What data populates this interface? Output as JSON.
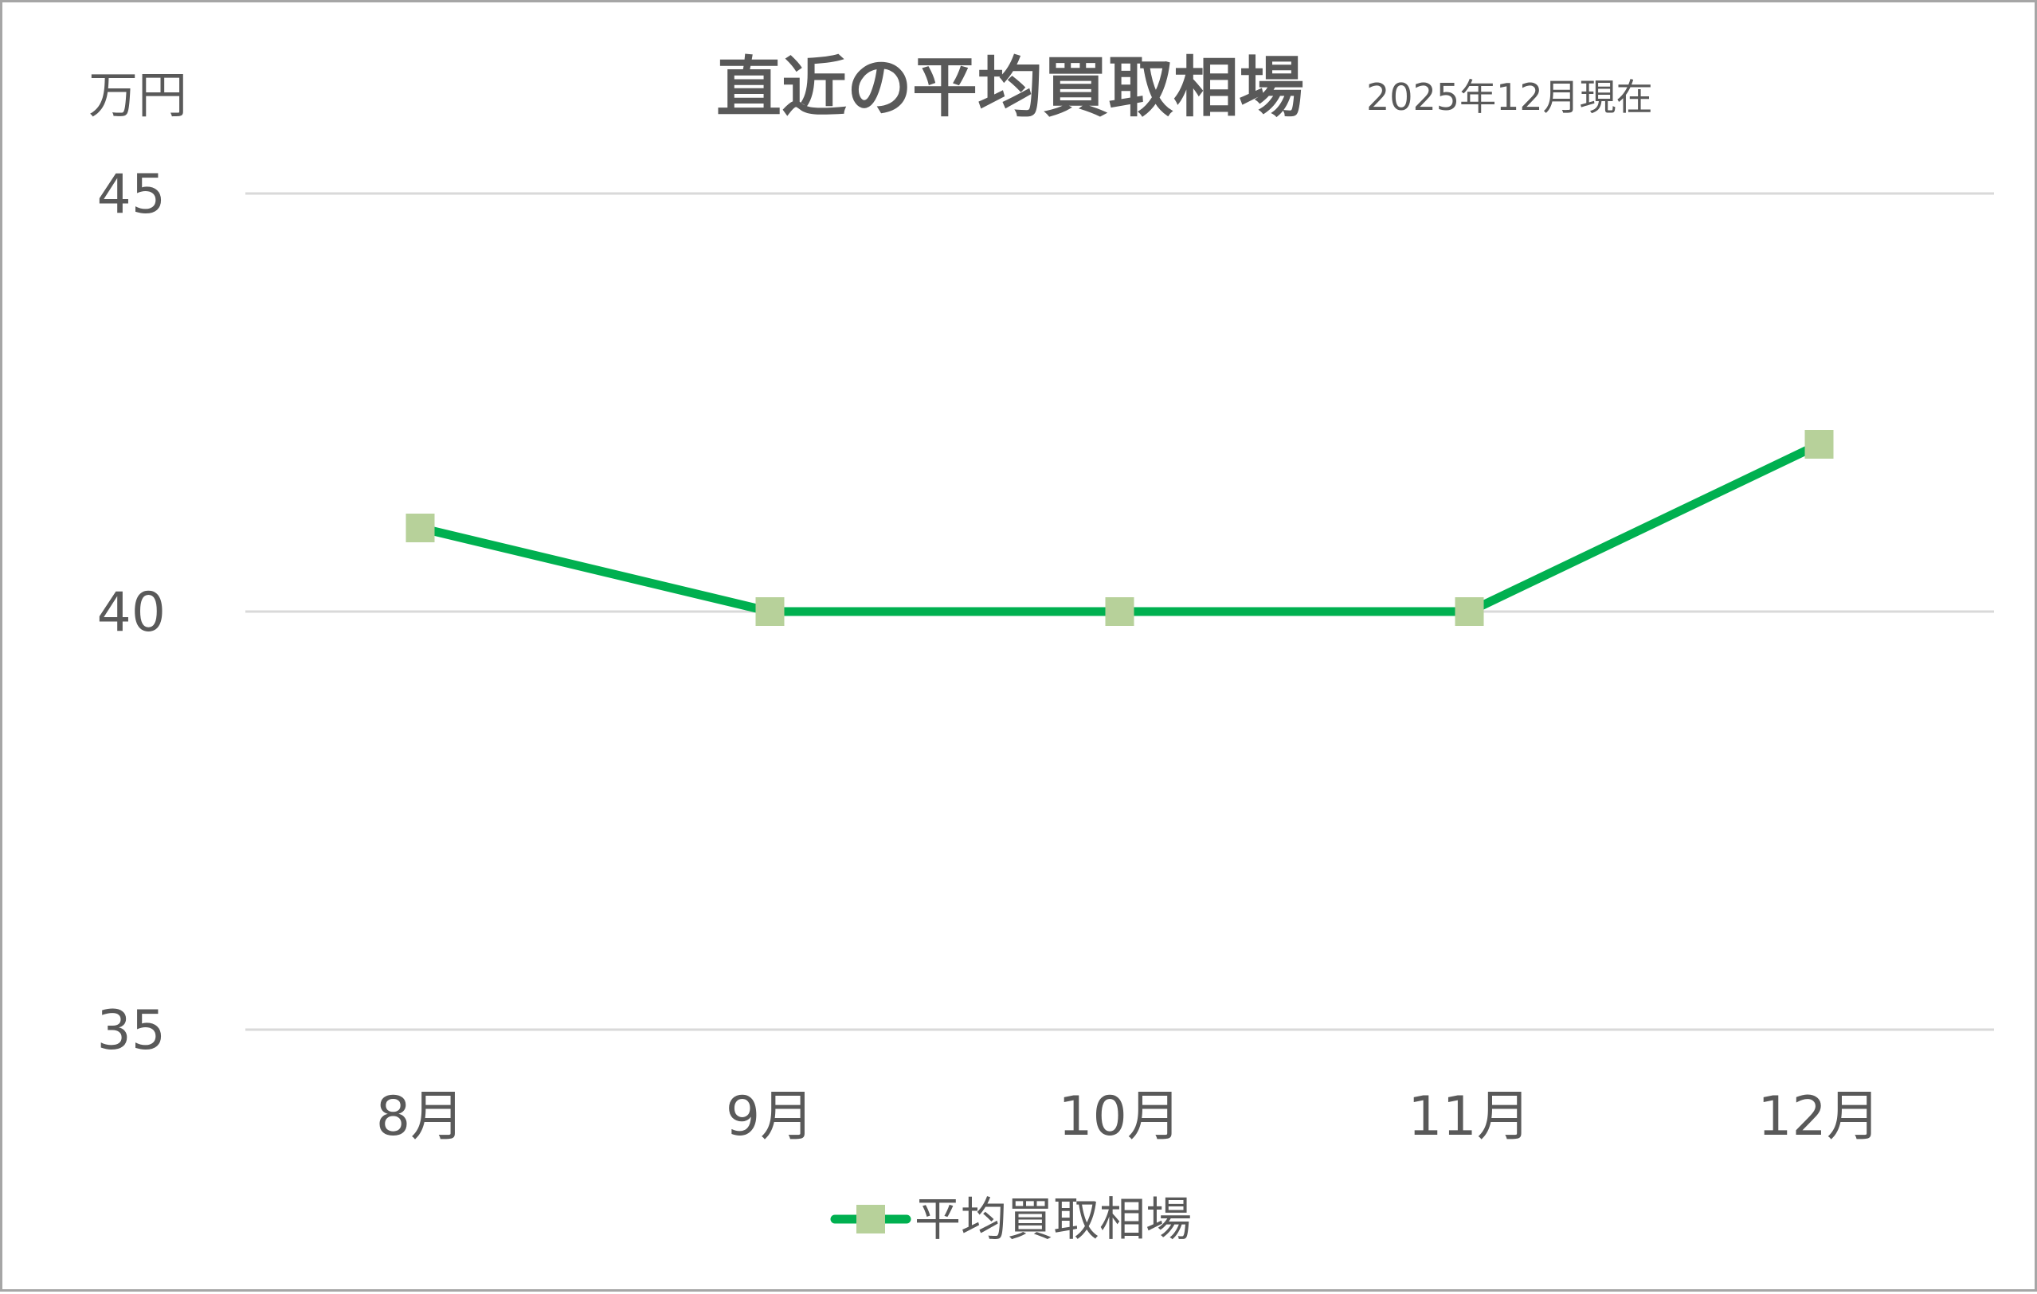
{
  "chart_data": {
    "type": "line",
    "title": "直近の平均買取相場",
    "subtitle": "2025年12月現在",
    "ylabel": "万円",
    "xlabel": "",
    "categories": [
      "8月",
      "9月",
      "10月",
      "11月",
      "12月"
    ],
    "series": [
      {
        "name": "平均買取相場",
        "values": [
          41,
          40,
          40,
          40,
          42
        ],
        "line_color": "#00b050",
        "marker": "square",
        "marker_color": "#b7d19a"
      }
    ],
    "ylim": [
      35,
      45
    ],
    "yticks": [
      35,
      40,
      45
    ],
    "grid": true,
    "legend_position": "bottom"
  }
}
